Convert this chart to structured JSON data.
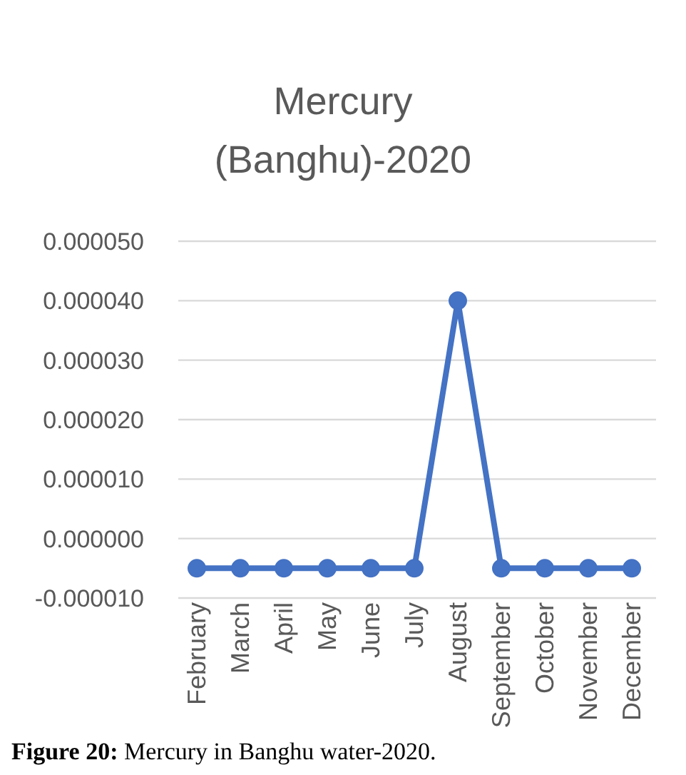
{
  "chart_data": {
    "type": "line",
    "title": "Mercury (Banghu)-2020",
    "categories": [
      "February",
      "March",
      "April",
      "May",
      "June",
      "July",
      "August",
      "September",
      "October",
      "November",
      "December"
    ],
    "series": [
      {
        "color": "#4472c4",
        "values": [
          -5e-06,
          -5e-06,
          -5e-06,
          -5e-06,
          -5e-06,
          -5e-06,
          4e-05,
          -5e-06,
          -5e-06,
          -5e-06,
          -5e-06
        ]
      }
    ],
    "ylim": [
      -1e-05,
      5e-05
    ],
    "yticks": [
      {
        "value": -1e-05,
        "label": "-0.000010"
      },
      {
        "value": 0,
        "label": "0.000000"
      },
      {
        "value": 1e-05,
        "label": "0.000010"
      },
      {
        "value": 2e-05,
        "label": "0.000020"
      },
      {
        "value": 3e-05,
        "label": "0.000030"
      },
      {
        "value": 4e-05,
        "label": "0.000040"
      },
      {
        "value": 5e-05,
        "label": "0.000050"
      }
    ],
    "grid": "y",
    "marker": "circle",
    "line_style": "solid",
    "annotations": [
      "Figure 20: Mercury in Banghu water-2020."
    ]
  }
}
